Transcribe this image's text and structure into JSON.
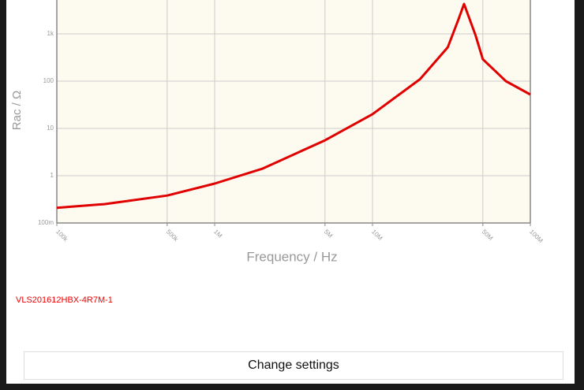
{
  "chart_data": {
    "type": "line",
    "xlabel": "Frequency / Hz",
    "ylabel": "Rac / Ω",
    "x": [
      100000,
      200000,
      500000,
      1000000,
      2000000,
      5000000,
      10000000,
      20000000,
      30000000,
      35000000,
      38000000,
      45000000,
      50000000,
      70000000,
      100000000
    ],
    "series": [
      {
        "name": "VLS201612HBX-4R7M-1",
        "color": "#e00000",
        "values": [
          0.21,
          0.25,
          0.38,
          0.68,
          1.4,
          5.6,
          20,
          110,
          520,
          2000,
          4300,
          930,
          290,
          100,
          52
        ]
      }
    ],
    "xlim": [
      100000,
      100000000
    ],
    "ylim": [
      0.1,
      5200
    ],
    "xticks": [
      {
        "value": 100000,
        "label": "100k"
      },
      {
        "value": 500000,
        "label": "500k"
      },
      {
        "value": 1000000,
        "label": "1M"
      },
      {
        "value": 5000000,
        "label": "5M"
      },
      {
        "value": 10000000,
        "label": "10M"
      },
      {
        "value": 50000000,
        "label": "50M"
      },
      {
        "value": 100000000,
        "label": "100M"
      }
    ],
    "yticks": [
      {
        "value": 0.1,
        "label": "100m"
      },
      1,
      10,
      100,
      {
        "value": 1000,
        "label": "1k"
      }
    ],
    "xscale": "log",
    "yscale": "log",
    "grid": true
  },
  "button": "Change settings"
}
